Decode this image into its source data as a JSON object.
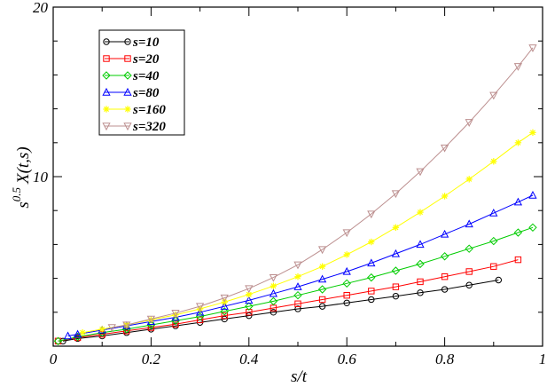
{
  "chart_data": {
    "type": "line",
    "xlabel": "s/t",
    "ylabel": {
      "prefix": "s",
      "exponent": "0.5",
      "main": "X(t,s)"
    },
    "xlim": [
      0,
      1
    ],
    "ylim": [
      0,
      20
    ],
    "x_ticks": [
      {
        "value": 0,
        "label": "0"
      },
      {
        "value": 0.2,
        "label": "0.2"
      },
      {
        "value": 0.4,
        "label": "0.4"
      },
      {
        "value": 0.6,
        "label": "0.6"
      },
      {
        "value": 0.8,
        "label": "0.8"
      },
      {
        "value": 1,
        "label": "1"
      }
    ],
    "y_ticks": [
      {
        "value": 10,
        "label": "10"
      },
      {
        "value": 20,
        "label": "20"
      }
    ],
    "legend_position": "top-left",
    "series": [
      {
        "name": "s=10",
        "color": "#000000",
        "marker": "circle",
        "x": [
          0.02,
          0.05,
          0.1,
          0.15,
          0.2,
          0.25,
          0.3,
          0.35,
          0.4,
          0.45,
          0.5,
          0.55,
          0.6,
          0.65,
          0.7,
          0.75,
          0.8,
          0.85,
          0.91
        ],
        "y": [
          0.3,
          0.45,
          0.6,
          0.8,
          1.0,
          1.2,
          1.4,
          1.6,
          1.8,
          2.0,
          2.2,
          2.35,
          2.55,
          2.75,
          2.95,
          3.15,
          3.35,
          3.6,
          3.9
        ]
      },
      {
        "name": "s=20",
        "color": "#ff0000",
        "marker": "square",
        "x": [
          0.01,
          0.05,
          0.1,
          0.15,
          0.2,
          0.25,
          0.3,
          0.35,
          0.4,
          0.45,
          0.5,
          0.55,
          0.6,
          0.65,
          0.7,
          0.75,
          0.8,
          0.85,
          0.9,
          0.95
        ],
        "y": [
          0.3,
          0.5,
          0.7,
          0.9,
          1.1,
          1.3,
          1.55,
          1.8,
          2.0,
          2.25,
          2.5,
          2.75,
          3.0,
          3.25,
          3.5,
          3.8,
          4.1,
          4.4,
          4.7,
          5.1
        ]
      },
      {
        "name": "s=40",
        "color": "#00cc00",
        "marker": "diamond",
        "x": [
          0.01,
          0.05,
          0.1,
          0.15,
          0.2,
          0.25,
          0.3,
          0.35,
          0.4,
          0.45,
          0.5,
          0.55,
          0.6,
          0.65,
          0.7,
          0.75,
          0.8,
          0.85,
          0.9,
          0.95,
          0.98
        ],
        "y": [
          0.3,
          0.55,
          0.8,
          1.0,
          1.25,
          1.5,
          1.75,
          2.05,
          2.35,
          2.65,
          3.0,
          3.35,
          3.7,
          4.05,
          4.45,
          4.85,
          5.3,
          5.75,
          6.2,
          6.7,
          7.0
        ]
      },
      {
        "name": "s=80",
        "color": "#0000ff",
        "marker": "triangle-up",
        "x": [
          0.03,
          0.05,
          0.1,
          0.15,
          0.2,
          0.25,
          0.3,
          0.35,
          0.4,
          0.45,
          0.5,
          0.55,
          0.6,
          0.65,
          0.7,
          0.75,
          0.8,
          0.85,
          0.9,
          0.95,
          0.98
        ],
        "y": [
          0.6,
          0.7,
          0.95,
          1.2,
          1.45,
          1.7,
          2.0,
          2.35,
          2.7,
          3.1,
          3.5,
          3.95,
          4.4,
          4.9,
          5.45,
          6.0,
          6.6,
          7.2,
          7.85,
          8.5,
          8.9
        ]
      },
      {
        "name": "s=160",
        "color": "#ffff00",
        "marker": "star",
        "x": [
          0.06,
          0.1,
          0.15,
          0.2,
          0.25,
          0.3,
          0.35,
          0.4,
          0.45,
          0.5,
          0.55,
          0.6,
          0.65,
          0.7,
          0.75,
          0.8,
          0.85,
          0.9,
          0.95,
          0.98
        ],
        "y": [
          0.8,
          1.0,
          1.25,
          1.55,
          1.85,
          2.2,
          2.6,
          3.05,
          3.55,
          4.1,
          4.7,
          5.4,
          6.15,
          7.0,
          7.9,
          8.85,
          9.85,
          10.9,
          12.0,
          12.6
        ]
      },
      {
        "name": "s=320",
        "color": "#bc8f8f",
        "marker": "triangle-down",
        "x": [
          0.12,
          0.15,
          0.2,
          0.25,
          0.3,
          0.35,
          0.4,
          0.45,
          0.5,
          0.55,
          0.6,
          0.65,
          0.7,
          0.75,
          0.8,
          0.85,
          0.9,
          0.95,
          0.98
        ],
        "y": [
          1.1,
          1.25,
          1.6,
          1.95,
          2.35,
          2.85,
          3.4,
          4.05,
          4.8,
          5.7,
          6.7,
          7.8,
          9.0,
          10.3,
          11.7,
          13.2,
          14.8,
          16.5,
          17.6
        ]
      }
    ]
  }
}
